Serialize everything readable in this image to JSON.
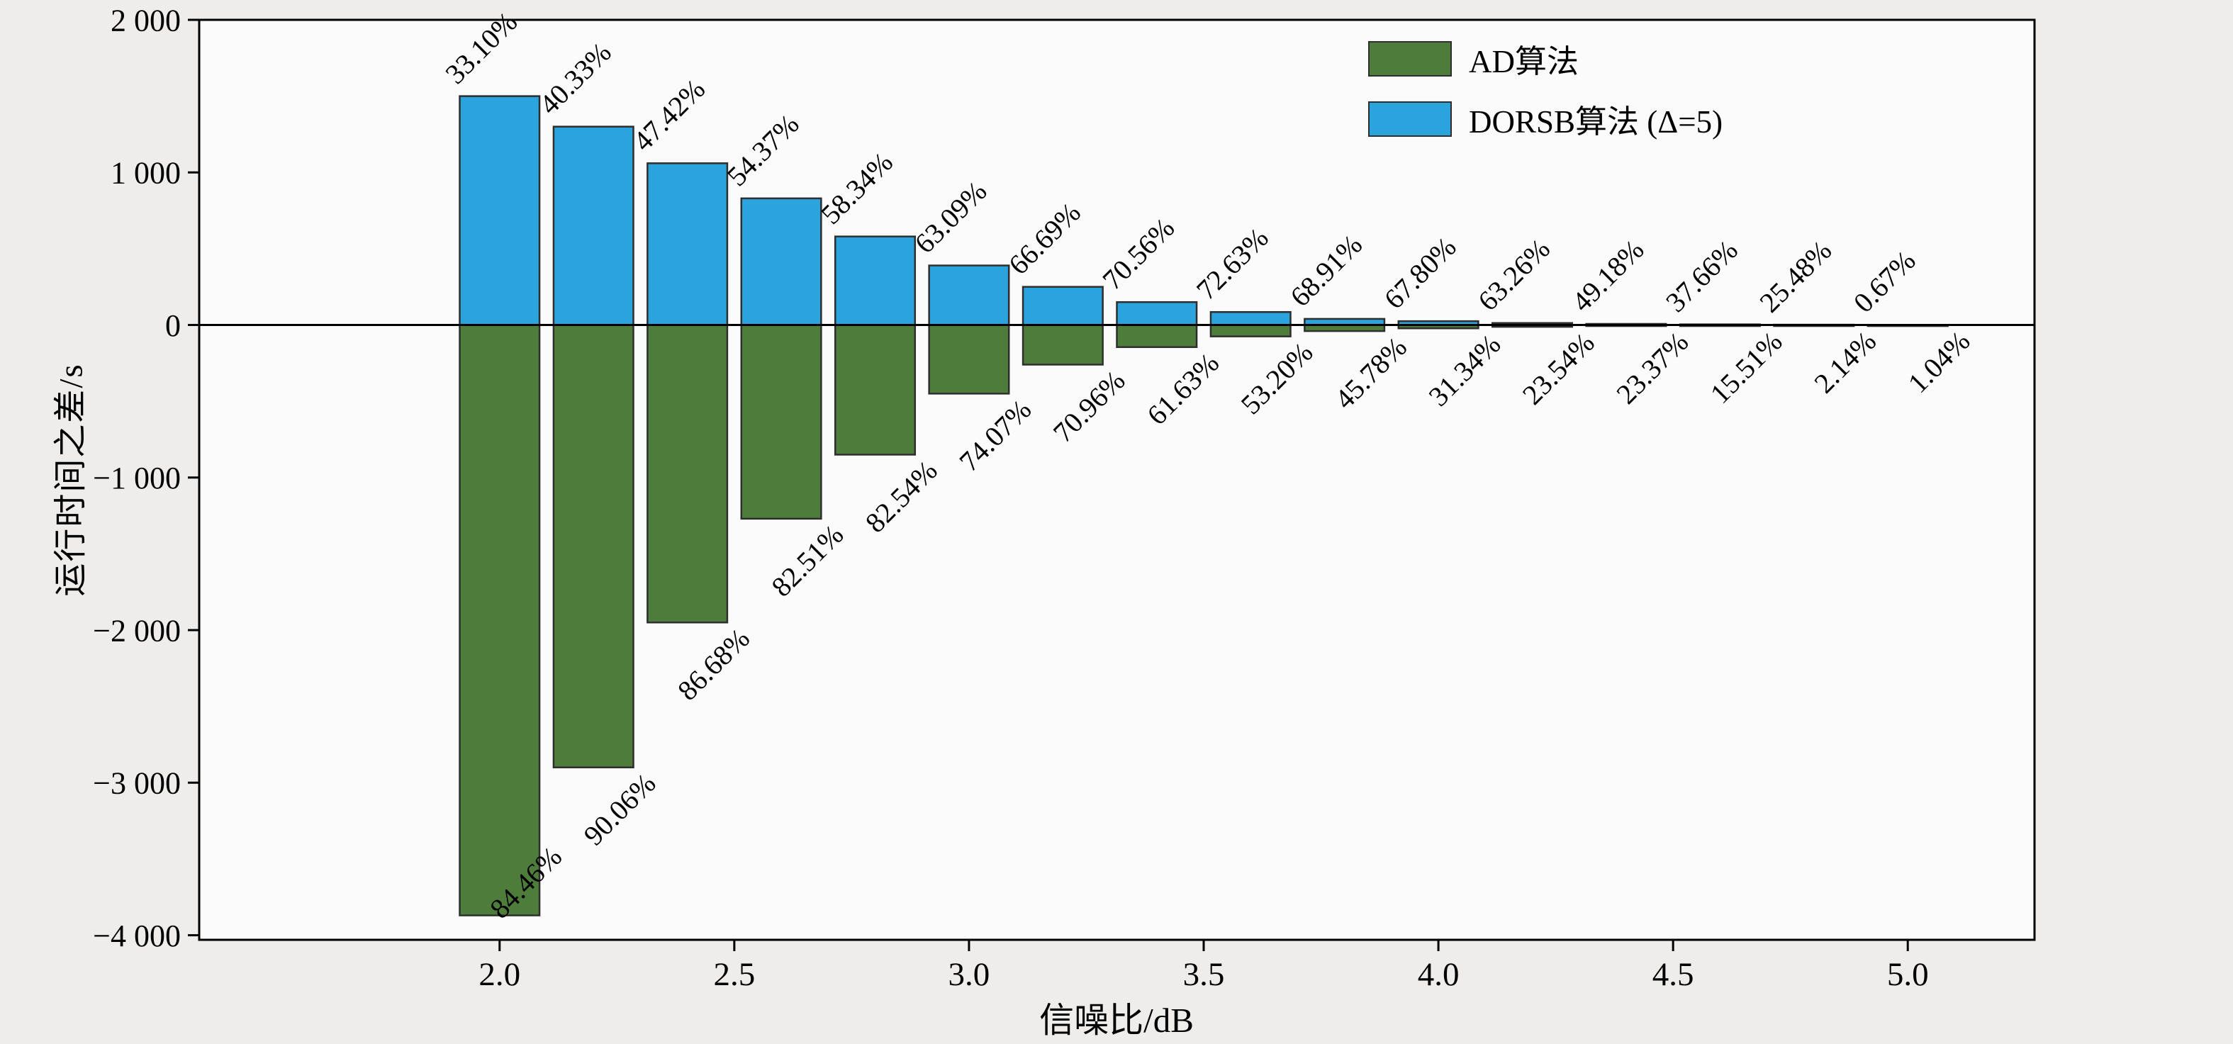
{
  "figure": {
    "background": "#eeedec",
    "plot_background": "#fbfbfb"
  },
  "chart_data": {
    "type": "bar",
    "title": "",
    "xlabel": "信噪比/dB",
    "ylabel": "运行时间之差/s",
    "x": [
      2.0,
      2.2,
      2.4,
      2.6,
      2.8,
      3.0,
      3.2,
      3.4,
      3.6,
      3.8,
      4.0,
      4.2,
      4.4,
      4.6,
      4.8,
      5.0
    ],
    "xlim": [
      1.36,
      5.27
    ],
    "ylim": [
      -4030,
      2000
    ],
    "bar_width": 0.17,
    "grid": false,
    "legend_position": "top-right",
    "xticks": {
      "values": [
        2.0,
        2.5,
        3.0,
        3.5,
        4.0,
        4.5,
        5.0
      ],
      "labels": [
        "2.0",
        "2.5",
        "3.0",
        "3.5",
        "4.0",
        "4.5",
        "5.0"
      ]
    },
    "yticks": {
      "values": [
        2000,
        1000,
        0,
        -1000,
        -2000,
        -3000,
        -4000
      ],
      "labels": [
        "2 000",
        "1 000",
        "0",
        "−1 000",
        "−2 000",
        "−3 000",
        "−4 000"
      ]
    },
    "series": [
      {
        "name": "AD算法",
        "color": "#4e7d3b",
        "edge_color": "#2e2e2e",
        "values": [
          -3870,
          -2900,
          -1950,
          -1270,
          -850,
          -450,
          -260,
          -145,
          -75,
          -40,
          -22,
          -12,
          -7,
          -4,
          -2,
          -1
        ],
        "bar_labels": [
          "84.46%",
          "90.06%",
          "86.68%",
          "82.51%",
          "82.54%",
          "74.07%",
          "70.96%",
          "61.63%",
          "53.20%",
          "45.78%",
          "31.34%",
          "23.54%",
          "23.37%",
          "15.51%",
          "2.14%",
          "1.04%"
        ]
      },
      {
        "name": "DORSB算法 (Δ=5)",
        "color": "#2ba3dd",
        "edge_color": "#2e2e2e",
        "values": [
          1500,
          1300,
          1060,
          830,
          580,
          390,
          250,
          150,
          85,
          40,
          25,
          13,
          7,
          4,
          2,
          1
        ],
        "bar_labels": [
          "33.10%",
          "40.33%",
          "47.42%",
          "54.37%",
          "58.34%",
          "63.09%",
          "66.69%",
          "70.56%",
          "72.63%",
          "68.91%",
          "67.80%",
          "63.26%",
          "49.18%",
          "37.66%",
          "25.48%",
          "0.67%"
        ]
      }
    ]
  }
}
